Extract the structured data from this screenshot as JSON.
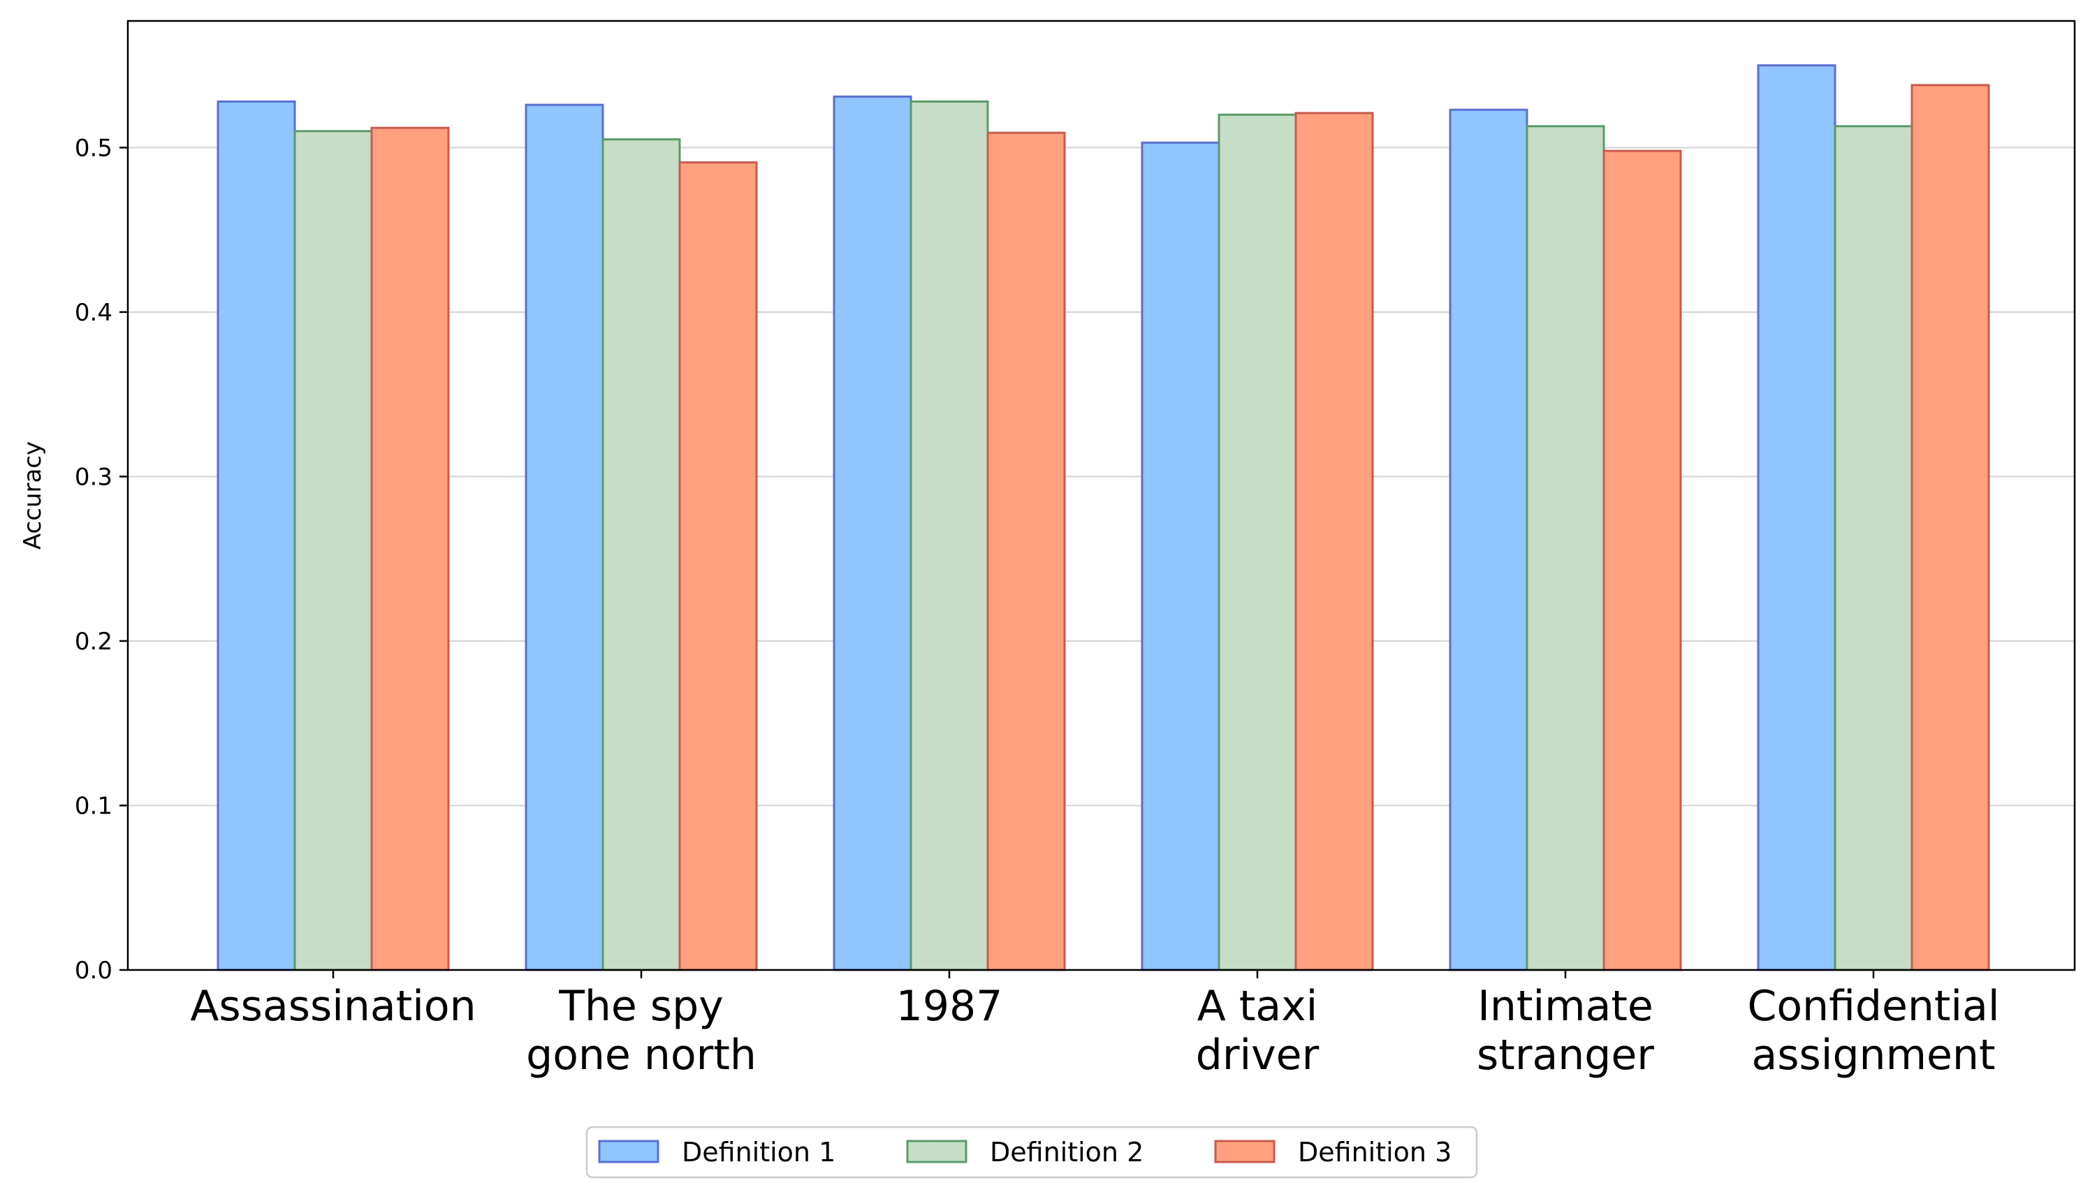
{
  "chart_data": {
    "type": "bar",
    "title": "",
    "xlabel": "",
    "ylabel": "Accuracy",
    "ylim": [
      0,
      0.577
    ],
    "yticks": [
      "0.0",
      "0.1",
      "0.2",
      "0.3",
      "0.4",
      "0.5"
    ],
    "grid": "horizontal",
    "legend_position": "bottom-center",
    "categories": [
      [
        "Assassination"
      ],
      [
        "The spy",
        "gone north"
      ],
      [
        "1987"
      ],
      [
        "A taxi",
        "driver"
      ],
      [
        "Intimate",
        "stranger"
      ],
      [
        "Confidential",
        "assignment"
      ]
    ],
    "series": [
      {
        "name": "Definition 1",
        "fill": "#90c5ff",
        "stroke": "#5a6ed0",
        "values": [
          0.528,
          0.526,
          0.531,
          0.503,
          0.523,
          0.55
        ]
      },
      {
        "name": "Definition 2",
        "fill": "#c6dec6",
        "stroke": "#5a9a68",
        "values": [
          0.51,
          0.505,
          0.528,
          0.52,
          0.513,
          0.513
        ]
      },
      {
        "name": "Definition 3",
        "fill": "#ffa07e",
        "stroke": "#c85a4e",
        "values": [
          0.512,
          0.491,
          0.509,
          0.521,
          0.498,
          0.538
        ]
      }
    ]
  }
}
